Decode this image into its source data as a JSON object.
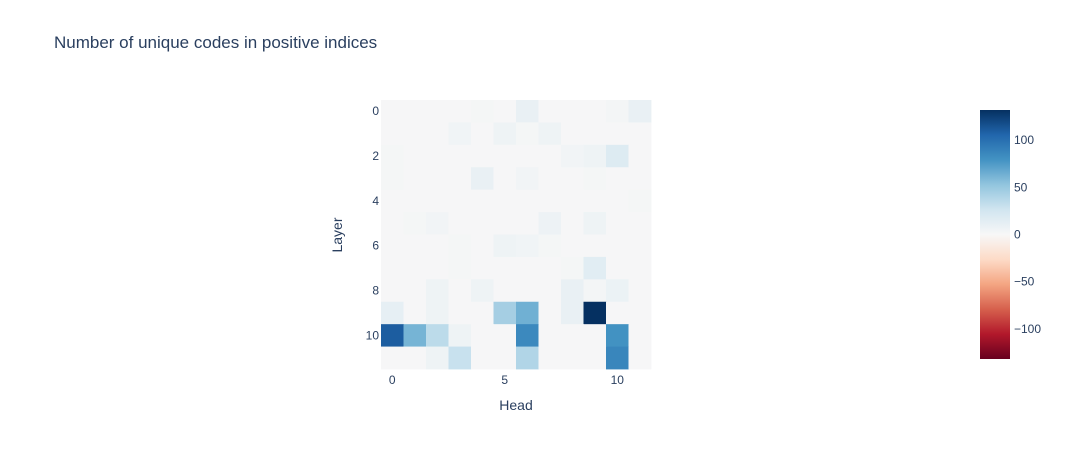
{
  "chart_data": {
    "type": "heatmap",
    "title": "Number of unique codes in positive indices",
    "xlabel": "Head",
    "ylabel": "Layer",
    "x_ticks": [
      0,
      5,
      10
    ],
    "y_ticks": [
      0,
      2,
      4,
      6,
      8,
      10
    ],
    "x_range": [
      -0.5,
      11.5
    ],
    "y_range": [
      -0.5,
      11.5
    ],
    "y_reversed": true,
    "colorscale": "RdBu",
    "colorscale_stops": [
      [
        0.0,
        "#67001f"
      ],
      [
        0.1,
        "#b2182b"
      ],
      [
        0.2,
        "#d6604d"
      ],
      [
        0.3,
        "#f4a582"
      ],
      [
        0.4,
        "#fddbc7"
      ],
      [
        0.5,
        "#f7f7f7"
      ],
      [
        0.6,
        "#d1e5f0"
      ],
      [
        0.7,
        "#92c5de"
      ],
      [
        0.8,
        "#4393c3"
      ],
      [
        0.9,
        "#2166ac"
      ],
      [
        1.0,
        "#053061"
      ]
    ],
    "zmin": -132,
    "zmax": 132,
    "colorbar_ticks": [
      100,
      50,
      0,
      -50,
      -100
    ],
    "colorbar_tick_labels": [
      "100",
      "50",
      "0",
      "−50",
      "−100"
    ],
    "z": [
      [
        1,
        1,
        1,
        1,
        2,
        1,
        10,
        1,
        1,
        1,
        3,
        10
      ],
      [
        1,
        1,
        1,
        5,
        1,
        6,
        2,
        6,
        1,
        1,
        1,
        1
      ],
      [
        2,
        1,
        1,
        1,
        1,
        1,
        1,
        1,
        4,
        6,
        18,
        1
      ],
      [
        2,
        1,
        1,
        1,
        10,
        1,
        4,
        1,
        1,
        2,
        1,
        1
      ],
      [
        1,
        1,
        1,
        1,
        1,
        1,
        1,
        1,
        1,
        1,
        1,
        2
      ],
      [
        1,
        2,
        4,
        1,
        1,
        1,
        1,
        7,
        1,
        6,
        1,
        1
      ],
      [
        1,
        1,
        1,
        2,
        1,
        6,
        5,
        2,
        1,
        1,
        1,
        1
      ],
      [
        1,
        1,
        1,
        2,
        1,
        1,
        1,
        1,
        2,
        15,
        1,
        1
      ],
      [
        1,
        1,
        6,
        1,
        6,
        1,
        1,
        1,
        10,
        3,
        8,
        1
      ],
      [
        12,
        1,
        6,
        1,
        1,
        45,
        64,
        1,
        10,
        132,
        1,
        1
      ],
      [
        110,
        62,
        35,
        6,
        1,
        1,
        85,
        1,
        1,
        1,
        80,
        1
      ],
      [
        1,
        1,
        6,
        30,
        1,
        1,
        40,
        1,
        1,
        1,
        87,
        1
      ]
    ]
  }
}
